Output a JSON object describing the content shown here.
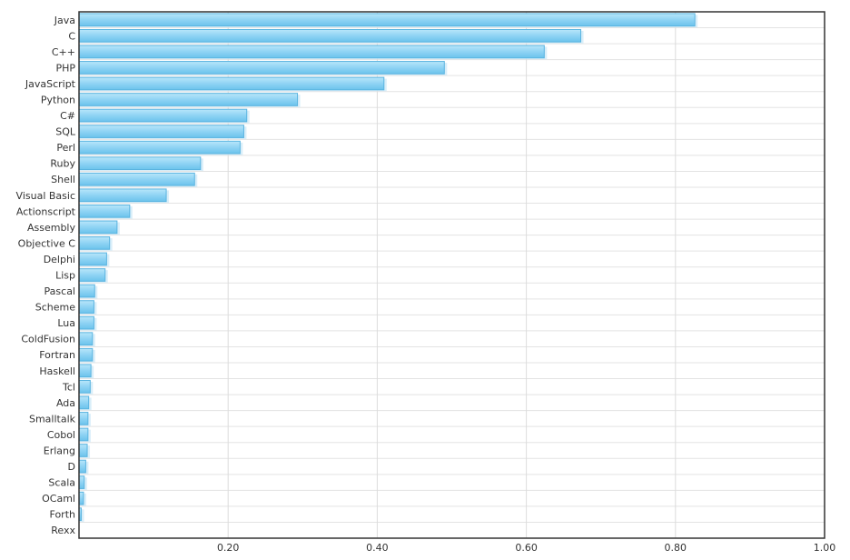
{
  "chart_data": {
    "type": "bar",
    "orientation": "horizontal",
    "title": "",
    "xlabel": "",
    "ylabel": "",
    "xlim": [
      0,
      1.0
    ],
    "x_ticks": [
      0.2,
      0.4,
      0.6,
      0.8,
      1.0
    ],
    "x_tick_labels": [
      "0.20",
      "0.40",
      "0.60",
      "0.80",
      "1.00"
    ],
    "grid": true,
    "legend": "none",
    "bar_color": "#8fd3f4",
    "bar_stroke": "#5ab4e0",
    "categories": [
      "Java",
      "C",
      "C++",
      "PHP",
      "JavaScript",
      "Python",
      "C#",
      "SQL",
      "Perl",
      "Ruby",
      "Shell",
      "Visual Basic",
      "Actionscript",
      "Assembly",
      "Objective C",
      "Delphi",
      "Lisp",
      "Pascal",
      "Scheme",
      "Lua",
      "ColdFusion",
      "Fortran",
      "Haskell",
      "Tcl",
      "Ada",
      "Smalltalk",
      "Cobol",
      "Erlang",
      "D",
      "Scala",
      "OCaml",
      "Forth",
      "Rexx"
    ],
    "values": [
      0.826,
      0.673,
      0.624,
      0.49,
      0.409,
      0.293,
      0.225,
      0.221,
      0.216,
      0.163,
      0.155,
      0.117,
      0.068,
      0.051,
      0.041,
      0.037,
      0.035,
      0.021,
      0.02,
      0.02,
      0.018,
      0.018,
      0.016,
      0.015,
      0.013,
      0.012,
      0.012,
      0.011,
      0.009,
      0.007,
      0.006,
      0.003,
      0.0
    ]
  }
}
